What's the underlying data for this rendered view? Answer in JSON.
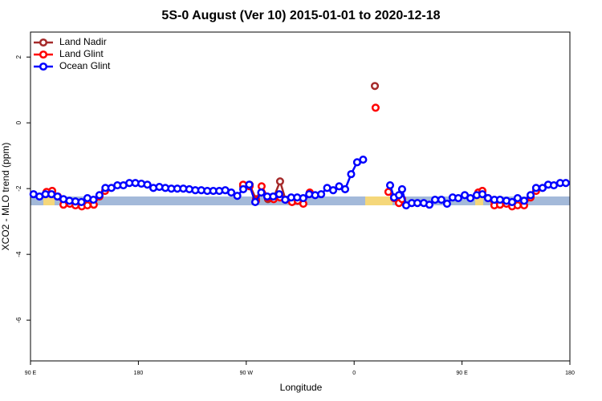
{
  "chart_data": {
    "type": "line",
    "title": "5S-0 August (Ver 10)   2015-01-01 to 2020-12-18",
    "xlabel": "Longitude",
    "ylabel": "XCO2 - MLO trend (ppm)",
    "xlim": [
      90,
      540
    ],
    "ylim": [
      -7.24,
      2.76
    ],
    "xticks": [
      {
        "value": 90,
        "label": "90 E"
      },
      180,
      {
        "value": 270,
        "label": "90 W"
      },
      {
        "value": 360,
        "label": "0"
      },
      {
        "value": 450,
        "label": "90 E"
      },
      {
        "value": 540,
        "label": "180"
      }
    ],
    "yticks": [
      2,
      0,
      -2,
      -4,
      -6
    ],
    "legend": "top-left",
    "series": [
      {
        "name": "Land Nadir",
        "color": "#a52a2a",
        "x": [
          103.4,
          108.1,
          200,
          267.4,
          272.8,
          278.1,
          282.8,
          288.1,
          292.9,
          298.2,
          302.8,
          340,
          377.3,
          420,
          463.6,
          467.0,
          471.7
        ],
        "values": [
          -2.12,
          -2.07,
          null,
          -1.93,
          -1.88,
          -2.32,
          -2.12,
          -2.32,
          -2.27,
          -1.78,
          -2.34,
          null,
          1.12,
          null,
          -2.12,
          -2.07,
          -2.29
        ]
      },
      {
        "name": "Land Glint",
        "color": "#ff0000",
        "x": [
          103.4,
          108.1,
          112.8,
          117.5,
          122.8,
          127.5,
          132.8,
          137.5,
          142.8,
          147.5,
          152.2,
          160,
          267.4,
          272.8,
          278.1,
          282.8,
          288.1,
          292.9,
          298.2,
          302.8,
          308.2,
          312.9,
          317.6,
          323.0,
          350,
          377.9,
          382,
          388.6,
          393.3,
          397.4,
          400.0,
          430,
          463.6,
          467.0,
          471.7,
          477.0,
          481.7,
          487.1,
          491.8,
          496.4,
          501.8,
          507.2,
          511.8
        ],
        "values": [
          -2.1,
          -2.07,
          -2.24,
          -2.49,
          -2.46,
          -2.51,
          -2.54,
          -2.51,
          -2.49,
          -2.24,
          -2.07,
          null,
          -1.88,
          -1.93,
          -2.37,
          -1.93,
          -2.27,
          -2.32,
          -2.27,
          -2.34,
          -2.41,
          -2.37,
          -2.46,
          -2.12,
          null,
          0.46,
          null,
          -2.1,
          -2.29,
          -2.44,
          -2.32,
          null,
          -2.12,
          -2.07,
          -2.29,
          -2.51,
          -2.49,
          -2.46,
          -2.54,
          -2.51,
          -2.51,
          -2.27,
          -2.07
        ]
      },
      {
        "name": "Ocean Glint",
        "color": "#0000ff",
        "x": [
          92.5,
          97.5,
          102.5,
          107.5,
          112.5,
          117.5,
          122.5,
          127.5,
          132.5,
          137.5,
          142.5,
          147.5,
          152.5,
          157.5,
          162.5,
          167.5,
          172.5,
          177.5,
          182.5,
          187.5,
          192.5,
          197.5,
          202.5,
          207.5,
          212.5,
          217.5,
          222.5,
          227.5,
          232.5,
          237.5,
          242.5,
          247.5,
          252.5,
          257.5,
          262.5,
          267.5,
          272.5,
          277.5,
          282.5,
          287.5,
          292.5,
          297.5,
          302.5,
          307.5,
          312.5,
          317.5,
          322.5,
          327.5,
          332.5,
          337.5,
          342.5,
          347.5,
          352.5,
          357.5,
          362.5,
          367.5,
          380,
          390.0,
          393.3,
          397.4,
          400.0,
          403.4,
          408.1,
          412.8,
          418.1,
          422.8,
          427.5,
          432.8,
          437.5,
          442.2,
          446.9,
          452.3,
          457.0,
          462.3,
          467.0,
          471.7,
          477.0,
          481.7,
          487.1,
          491.8,
          496.4,
          501.8,
          507.2,
          511.8,
          517.2,
          521.9,
          526.6,
          531.9,
          536.6
        ],
        "values": [
          -2.17,
          -2.24,
          -2.17,
          -2.17,
          -2.24,
          -2.32,
          -2.37,
          -2.39,
          -2.41,
          -2.29,
          -2.34,
          -2.2,
          -1.98,
          -1.98,
          -1.9,
          -1.9,
          -1.83,
          -1.83,
          -1.85,
          -1.88,
          -1.98,
          -1.95,
          -1.98,
          -2.0,
          -2.0,
          -2.0,
          -2.02,
          -2.05,
          -2.05,
          -2.07,
          -2.07,
          -2.07,
          -2.05,
          -2.12,
          -2.22,
          -2.02,
          -1.88,
          -2.41,
          -2.12,
          -2.24,
          -2.24,
          -2.17,
          -2.34,
          -2.27,
          -2.27,
          -2.29,
          -2.17,
          -2.2,
          -2.17,
          -1.98,
          -2.05,
          -1.93,
          -2.02,
          -1.56,
          -1.2,
          -1.12,
          null,
          -1.9,
          -2.27,
          -2.2,
          -2.02,
          -2.51,
          -2.44,
          -2.44,
          -2.44,
          -2.49,
          -2.34,
          -2.34,
          -2.46,
          -2.27,
          -2.29,
          -2.2,
          -2.29,
          -2.2,
          -2.17,
          -2.29,
          -2.34,
          -2.34,
          -2.37,
          -2.41,
          -2.29,
          -2.37,
          -2.2,
          -1.98,
          -1.98,
          -1.88,
          -1.9,
          -1.83,
          -1.83
        ]
      }
    ]
  }
}
